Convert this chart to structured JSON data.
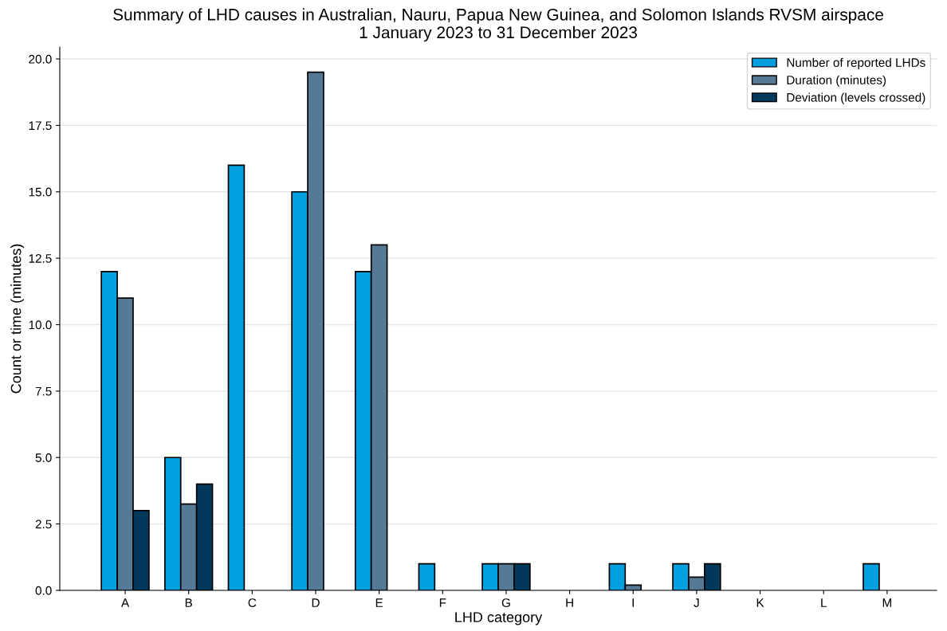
{
  "chart_data": {
    "type": "bar",
    "title": "Summary of LHD causes in Australian, Nauru, Papua New Guinea, and Solomon Islands RVSM airspace\n1 January 2023 to 31 December 2023",
    "xlabel": "LHD category",
    "ylabel": "Count or time (minutes)",
    "categories": [
      "A",
      "B",
      "C",
      "D",
      "E",
      "F",
      "G",
      "H",
      "I",
      "J",
      "K",
      "L",
      "M"
    ],
    "series": [
      {
        "name": "Number of reported LHDs",
        "color": "#009fdf",
        "values": [
          12,
          5,
          16,
          15,
          12,
          1,
          1,
          null,
          1,
          1,
          null,
          null,
          1
        ]
      },
      {
        "name": "Duration (minutes)",
        "color": "#557a95",
        "values": [
          11,
          3.25,
          null,
          19.5,
          13,
          null,
          1,
          null,
          0.2,
          0.5,
          null,
          null,
          null
        ]
      },
      {
        "name": "Deviation (levels crossed)",
        "color": "#02395a",
        "values": [
          3,
          4,
          null,
          null,
          null,
          null,
          1,
          null,
          null,
          1,
          null,
          null,
          null
        ]
      }
    ],
    "ylim": [
      0,
      20.45
    ],
    "yticks": [
      {
        "value": 0,
        "label": "0.0"
      },
      {
        "value": 2.5,
        "label": "2.5"
      },
      {
        "value": 5,
        "label": "5.0"
      },
      {
        "value": 7.5,
        "label": "7.5"
      },
      {
        "value": 10,
        "label": "10.0"
      },
      {
        "value": 12.5,
        "label": "12.5"
      },
      {
        "value": 15,
        "label": "15.0"
      },
      {
        "value": 17.5,
        "label": "17.5"
      },
      {
        "value": 20,
        "label": "20.0"
      }
    ],
    "grid": "y",
    "legend": "top right"
  }
}
